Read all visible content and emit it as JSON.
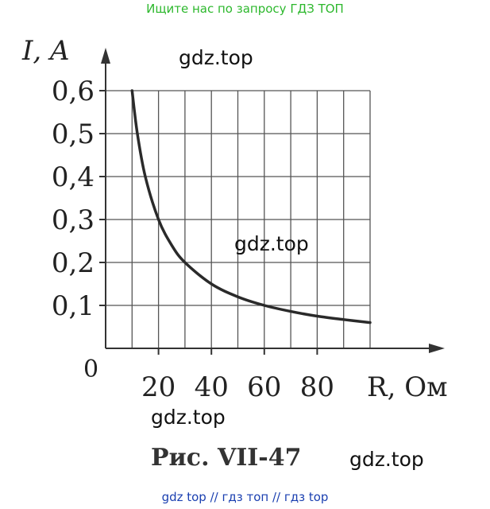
{
  "banner_text": "Ищите нас по запросу ГДЗ ТОП",
  "watermark": "gdz.top",
  "caption": "Рис. VII-47",
  "footer_text": "gdz top  //  гдз топ  //  гдз top",
  "colors": {
    "curve": "#2a2a2a",
    "grid": "#555555",
    "banner": "#2db82d",
    "footer": "#1a3fb0"
  },
  "chart_data": {
    "type": "line",
    "title": "",
    "xlabel": "R, Ом",
    "ylabel": "I, A",
    "origin_label": "0",
    "x_ticks": [
      "20",
      "40",
      "60",
      "80"
    ],
    "y_ticks": [
      "0,1",
      "0,2",
      "0,3",
      "0,4",
      "0,5",
      "0,6"
    ],
    "xlim": [
      0,
      100
    ],
    "ylim": [
      0,
      0.6
    ],
    "grid": true,
    "series": [
      {
        "x": [
          10,
          12,
          15,
          20,
          25,
          30,
          40,
          50,
          60,
          70,
          80,
          90,
          100
        ],
        "y": [
          0.6,
          0.5,
          0.4,
          0.3,
          0.24,
          0.2,
          0.15,
          0.12,
          0.1,
          0.086,
          0.075,
          0.067,
          0.06
        ]
      }
    ]
  }
}
